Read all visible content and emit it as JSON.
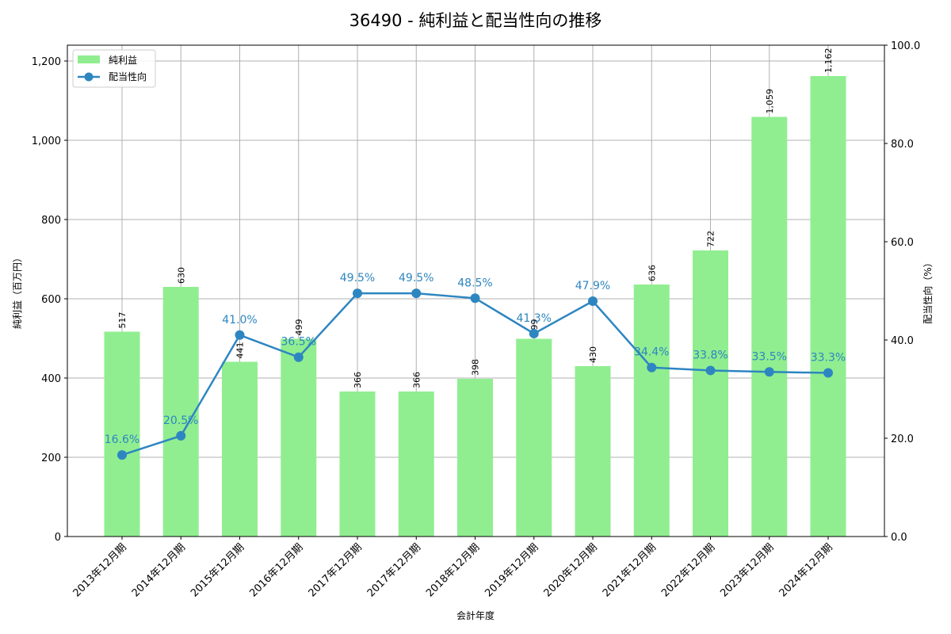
{
  "title": "36490 - 純利益と配当性向の推移",
  "legend": {
    "bar_label": "純利益",
    "line_label": "配当性向"
  },
  "colors": {
    "bar": "#90ee90",
    "line": "#2e86c1",
    "grid": "#b0b0b0"
  },
  "chart_data": {
    "type": "bar+line",
    "title": "36490 - 純利益と配当性向の推移",
    "xlabel": "会計年度",
    "ylabel": "純利益（百万円）",
    "y2label": "配当性向（%）",
    "categories": [
      "2013年12月期",
      "2014年12月期",
      "2015年12月期",
      "2016年12月期",
      "2017年12月期",
      "2017年12月期",
      "2018年12月期",
      "2019年12月期",
      "2020年12月期",
      "2021年12月期",
      "2022年12月期",
      "2023年12月期",
      "2024年12月期"
    ],
    "series": [
      {
        "name": "純利益",
        "type": "bar",
        "axis": "left",
        "values": [
          517,
          630,
          441,
          499,
          366,
          366,
          398,
          499,
          430,
          636,
          722,
          1059,
          1162
        ],
        "labels": [
          "517",
          "630",
          "441",
          "499",
          "366",
          "366",
          "398",
          "499",
          "430",
          "636",
          "722",
          "1,059",
          "1,162"
        ]
      },
      {
        "name": "配当性向",
        "type": "line",
        "axis": "right",
        "values": [
          16.6,
          20.5,
          41.0,
          36.5,
          49.5,
          49.5,
          48.5,
          41.3,
          47.9,
          34.4,
          33.8,
          33.5,
          33.3
        ],
        "labels": [
          "16.6%",
          "20.5%",
          "41.0%",
          "36.5%",
          "49.5%",
          "49.5%",
          "48.5%",
          "41.3%",
          "47.9%",
          "34.4%",
          "33.8%",
          "33.5%",
          "33.3%"
        ]
      }
    ],
    "ylim": [
      0,
      1240
    ],
    "y2lim": [
      0,
      100
    ],
    "yticks": [
      "0",
      "200",
      "400",
      "600",
      "800",
      "1,000",
      "1,200"
    ],
    "y2ticks": [
      "0.0",
      "20.0",
      "40.0",
      "60.0",
      "80.0",
      "100.0"
    ],
    "grid": true,
    "legend_position": "upper left"
  }
}
